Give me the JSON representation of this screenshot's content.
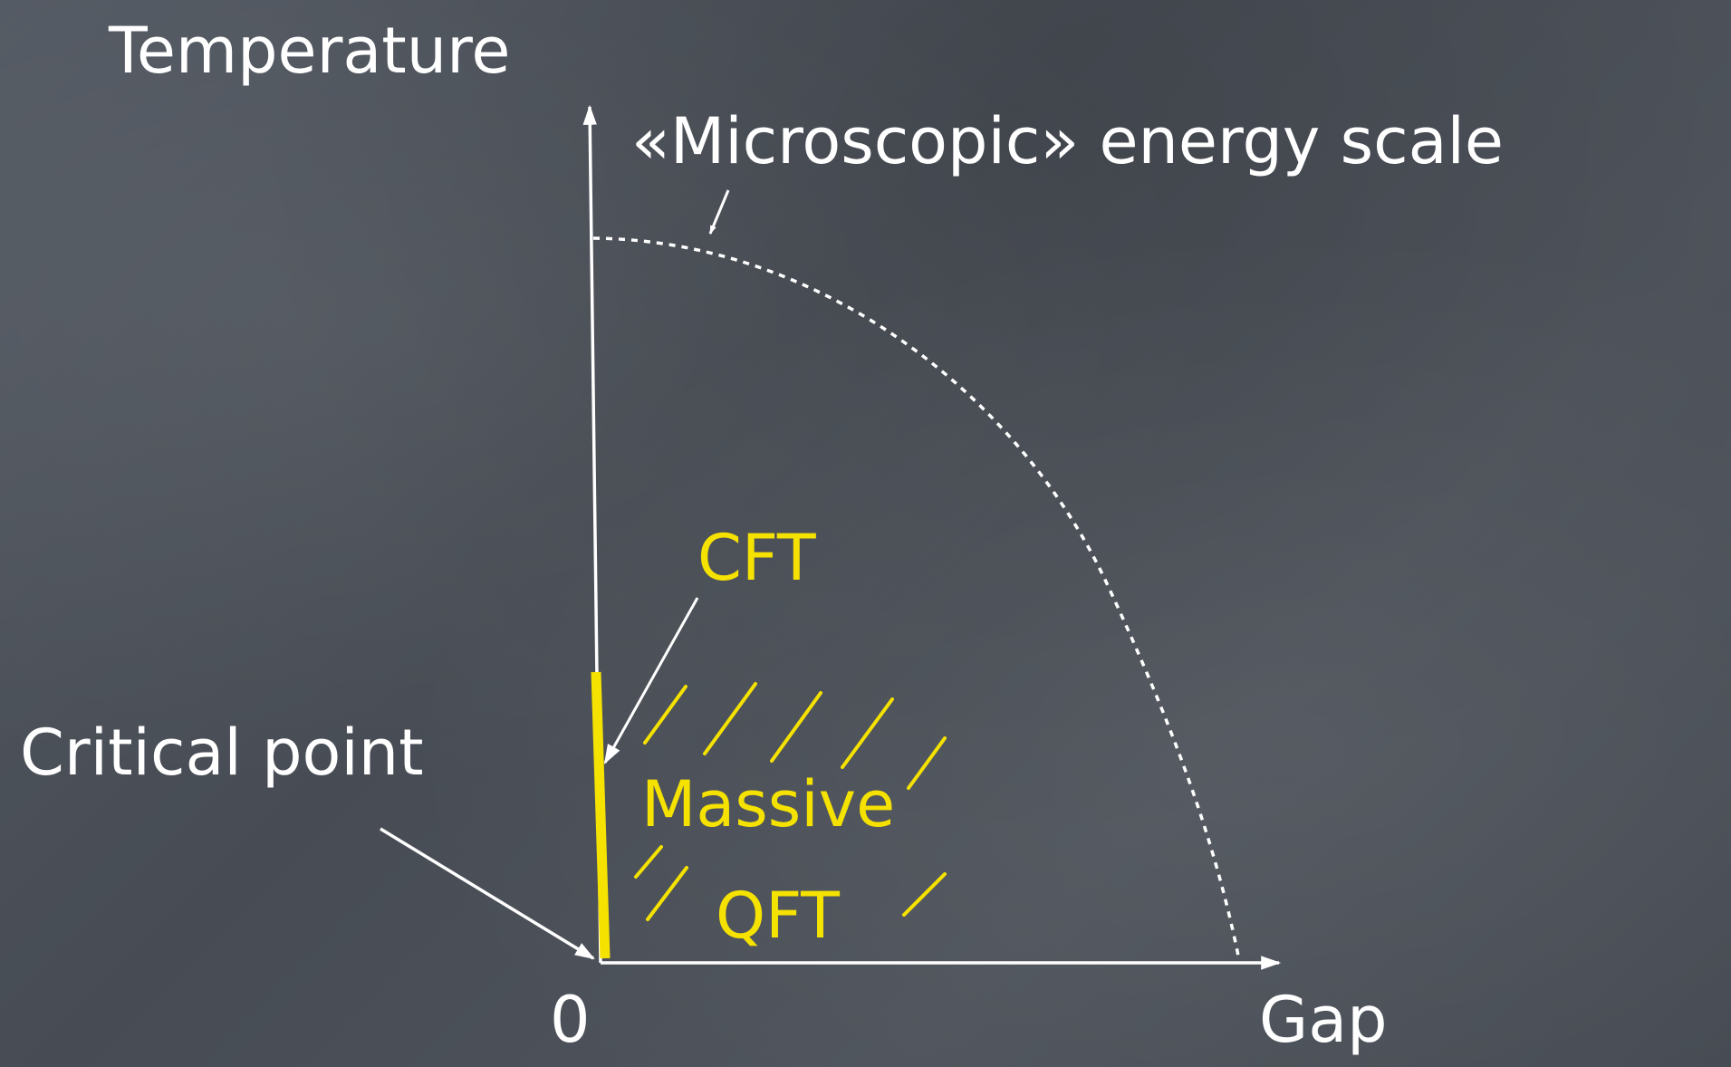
{
  "diagram": {
    "y_axis_label": "Temperature",
    "x_axis_label": "Gap",
    "origin_label": "0",
    "energy_scale_label": "«Microscopic» energy scale",
    "cft_label": "CFT",
    "critical_point_label": "Critical point",
    "massive_label": "Massive",
    "qft_label": "QFT"
  },
  "colors": {
    "chalk_white": "#ffffff",
    "chalk_yellow": "#f5e200",
    "board": "#4c5159"
  }
}
